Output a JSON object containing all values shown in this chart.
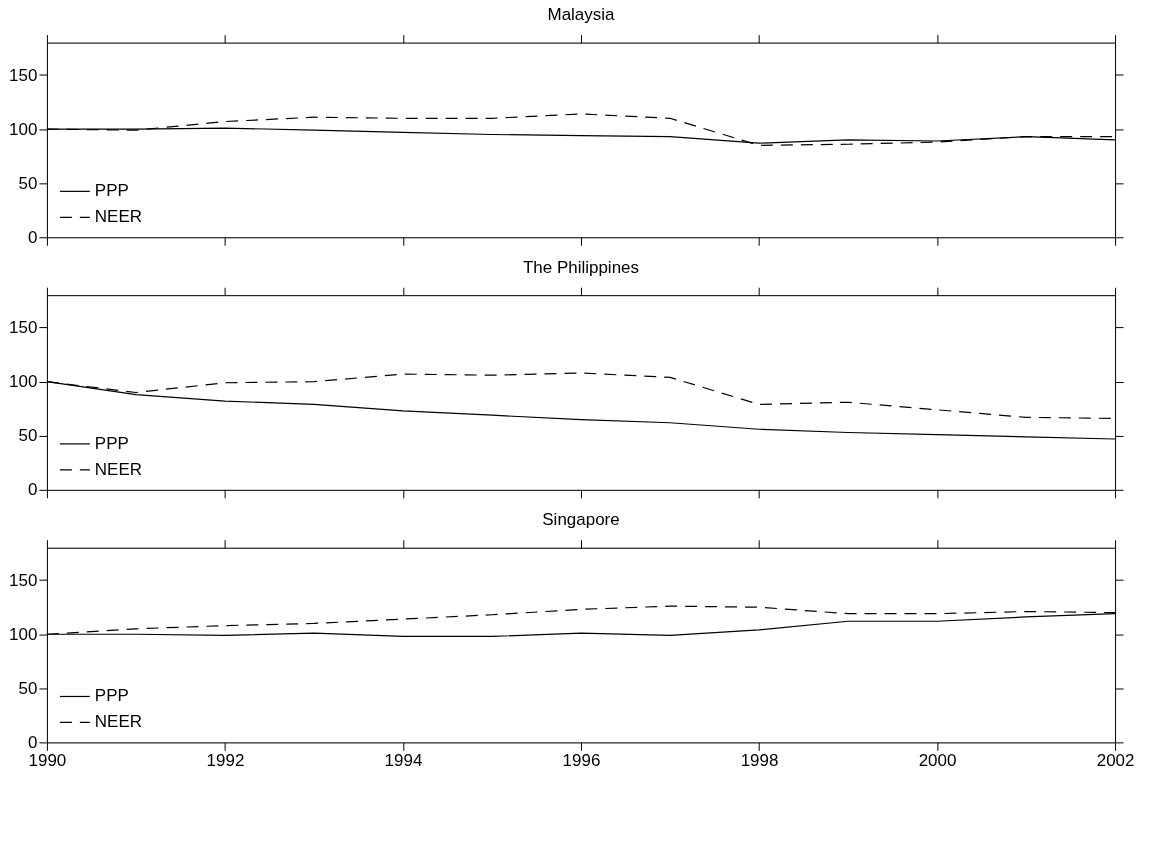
{
  "chart_data": [
    {
      "type": "line",
      "title": "Malaysia",
      "x": [
        1990,
        1991,
        1992,
        1993,
        1994,
        1995,
        1996,
        1997,
        1998,
        1999,
        2000,
        2001,
        2002
      ],
      "xlim": [
        1990,
        2002
      ],
      "xticks": [
        1990,
        1992,
        1994,
        1996,
        1998,
        2000,
        2002
      ],
      "ylim": [
        0,
        180
      ],
      "yticks": [
        0,
        50,
        100,
        150
      ],
      "legend": "bottom left",
      "tick_labels": "y",
      "series": [
        {
          "name": "PPP",
          "color": "#000000",
          "line_style": "solid",
          "values": [
            100,
            100,
            101,
            99,
            97,
            95,
            94,
            93,
            87,
            90,
            89,
            93,
            90
          ]
        },
        {
          "name": "NEER",
          "color": "#000000",
          "line_style": "dashed",
          "values": [
            100,
            99,
            107,
            111,
            110,
            110,
            114,
            110,
            85,
            86,
            88,
            93,
            93
          ]
        }
      ]
    },
    {
      "type": "line",
      "title": "The Philippines",
      "x": [
        1990,
        1991,
        1992,
        1993,
        1994,
        1995,
        1996,
        1997,
        1998,
        1999,
        2000,
        2001,
        2002
      ],
      "xlim": [
        1990,
        2002
      ],
      "xticks": [
        1990,
        1992,
        1994,
        1996,
        1998,
        2000,
        2002
      ],
      "ylim": [
        0,
        180
      ],
      "yticks": [
        0,
        50,
        100,
        150
      ],
      "legend": "bottom left",
      "tick_labels": "y",
      "series": [
        {
          "name": "PPP",
          "color": "#000000",
          "line_style": "solid",
          "values": [
            100,
            88,
            82,
            79,
            73,
            69,
            65,
            62,
            56,
            53,
            51,
            49,
            47
          ]
        },
        {
          "name": "NEER",
          "color": "#000000",
          "line_style": "dashed",
          "values": [
            100,
            90,
            99,
            100,
            107,
            106,
            108,
            104,
            79,
            81,
            74,
            67,
            66
          ]
        }
      ]
    },
    {
      "type": "line",
      "title": "Singapore",
      "x": [
        1990,
        1991,
        1992,
        1993,
        1994,
        1995,
        1996,
        1997,
        1998,
        1999,
        2000,
        2001,
        2002
      ],
      "xlim": [
        1990,
        2002
      ],
      "xticks": [
        1990,
        1992,
        1994,
        1996,
        1998,
        2000,
        2002
      ],
      "ylim": [
        0,
        180
      ],
      "yticks": [
        0,
        50,
        100,
        150
      ],
      "legend": "bottom left",
      "series": [
        {
          "name": "PPP",
          "color": "#000000",
          "line_style": "solid",
          "values": [
            100,
            100,
            99,
            101,
            98,
            98,
            101,
            99,
            104,
            112,
            112,
            116,
            119
          ]
        },
        {
          "name": "NEER",
          "color": "#000000",
          "line_style": "dashed",
          "values": [
            100,
            105,
            108,
            110,
            114,
            118,
            123,
            126,
            125,
            119,
            119,
            121,
            120
          ]
        }
      ]
    }
  ]
}
